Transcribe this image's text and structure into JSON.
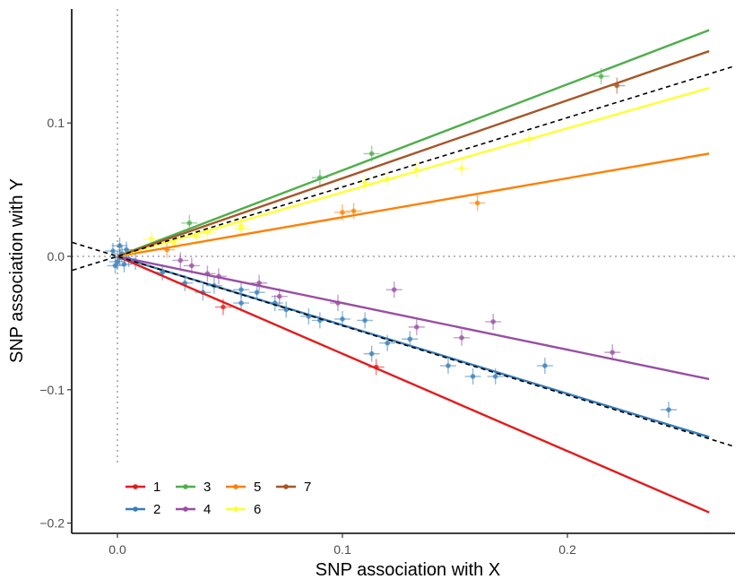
{
  "chart_data": {
    "type": "scatter",
    "title": "",
    "xlabel": "SNP association with X",
    "ylabel": "SNP association with Y",
    "xlim": [
      -0.02,
      0.275
    ],
    "ylim": [
      -0.205,
      0.188
    ],
    "x_ticks": [
      0.0,
      0.1,
      0.2
    ],
    "x_tick_labels": [
      "0.0",
      "0.1",
      "0.2"
    ],
    "y_ticks": [
      -0.2,
      -0.1,
      0.0,
      0.1
    ],
    "y_tick_labels": [
      "−0.2",
      "−0.1",
      "0.0",
      "0.1"
    ],
    "grid": false,
    "reference_lines": {
      "x_zero_dotted": true,
      "y_zero_dotted": true
    },
    "overall_fit_dashed": {
      "slope": 0.52,
      "slope_lower": -0.52
    },
    "series": [
      {
        "name": "1",
        "color": "#E41A1C",
        "slope": -0.73,
        "points": [
          [
            0.047,
            -0.038
          ],
          [
            0.115,
            -0.083
          ]
        ]
      },
      {
        "name": "2",
        "color": "#377EB8",
        "slope": -0.515,
        "points": [
          [
            0.001,
            0.008
          ],
          [
            -0.002,
            0.004
          ],
          [
            0.002,
            0.002
          ],
          [
            0.0,
            -0.004
          ],
          [
            0.003,
            -0.006
          ],
          [
            -0.001,
            -0.007
          ],
          [
            0.005,
            -0.002
          ],
          [
            0.008,
            -0.004
          ],
          [
            0.001,
            -0.001
          ],
          [
            0.004,
            0.005
          ],
          [
            0.02,
            -0.012
          ],
          [
            0.03,
            -0.02
          ],
          [
            0.038,
            -0.027
          ],
          [
            0.043,
            -0.022
          ],
          [
            0.055,
            -0.025
          ],
          [
            0.055,
            -0.035
          ],
          [
            0.062,
            -0.027
          ],
          [
            0.07,
            -0.035
          ],
          [
            0.075,
            -0.04
          ],
          [
            0.085,
            -0.045
          ],
          [
            0.09,
            -0.048
          ],
          [
            0.1,
            -0.047
          ],
          [
            0.11,
            -0.048
          ],
          [
            0.113,
            -0.073
          ],
          [
            0.12,
            -0.065
          ],
          [
            0.13,
            -0.062
          ],
          [
            0.147,
            -0.082
          ],
          [
            0.158,
            -0.09
          ],
          [
            0.168,
            -0.09
          ],
          [
            0.19,
            -0.082
          ],
          [
            0.245,
            -0.115
          ]
        ]
      },
      {
        "name": "3",
        "color": "#4DAF4A",
        "slope": 0.645,
        "points": [
          [
            0.032,
            0.025
          ],
          [
            0.09,
            0.059
          ],
          [
            0.113,
            0.077
          ],
          [
            0.215,
            0.135
          ]
        ]
      },
      {
        "name": "4",
        "color": "#984EA3",
        "slope": -0.35,
        "points": [
          [
            0.028,
            -0.003
          ],
          [
            0.033,
            -0.007
          ],
          [
            0.04,
            -0.013
          ],
          [
            0.045,
            -0.015
          ],
          [
            0.063,
            -0.02
          ],
          [
            0.072,
            -0.03
          ],
          [
            0.098,
            -0.035
          ],
          [
            0.123,
            -0.025
          ],
          [
            0.133,
            -0.053
          ],
          [
            0.153,
            -0.061
          ],
          [
            0.167,
            -0.049
          ],
          [
            0.22,
            -0.072
          ]
        ]
      },
      {
        "name": "5",
        "color": "#FF7F00",
        "slope": 0.293,
        "points": [
          [
            0.022,
            0.005
          ],
          [
            0.1,
            0.033
          ],
          [
            0.105,
            0.034
          ],
          [
            0.16,
            0.04
          ]
        ]
      },
      {
        "name": "6",
        "color": "#FFFF33",
        "slope": 0.48,
        "points": [
          [
            0.015,
            0.013
          ],
          [
            0.025,
            0.01
          ],
          [
            0.035,
            0.015
          ],
          [
            0.04,
            0.018
          ],
          [
            0.055,
            0.021
          ],
          [
            0.055,
            0.023
          ],
          [
            0.11,
            0.055
          ],
          [
            0.12,
            0.058
          ],
          [
            0.133,
            0.065
          ],
          [
            0.153,
            0.066
          ],
          [
            0.183,
            0.088
          ]
        ]
      },
      {
        "name": "7",
        "color": "#A65628",
        "slope": 0.585,
        "points": [
          [
            0.222,
            0.128
          ]
        ]
      }
    ],
    "fit_x_max": 0.263,
    "legend": {
      "position": "bottom-left",
      "entries": [
        "1",
        "2",
        "3",
        "4",
        "5",
        "6",
        "7"
      ]
    }
  }
}
